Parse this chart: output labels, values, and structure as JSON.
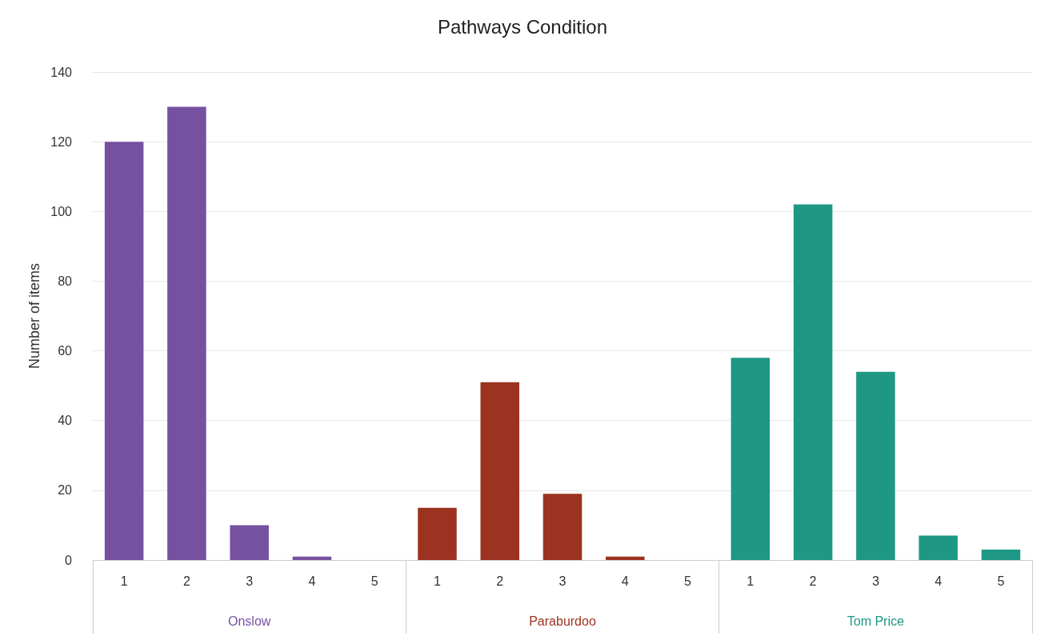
{
  "chart_data": {
    "type": "bar",
    "title": "Pathways Condition",
    "ylabel": "Number of items",
    "categories": [
      "1",
      "2",
      "3",
      "4",
      "5",
      "1",
      "2",
      "3",
      "4",
      "5",
      "1",
      "2",
      "3",
      "4",
      "5"
    ],
    "series": [
      {
        "name": "Onslow",
        "color": "#7651a0",
        "values": [
          120,
          130,
          10,
          1,
          0,
          null,
          null,
          null,
          null,
          null,
          null,
          null,
          null,
          null,
          null
        ]
      },
      {
        "name": "Paraburdoo",
        "color": "#9c3320",
        "values": [
          null,
          null,
          null,
          null,
          null,
          15,
          51,
          19,
          1,
          0,
          null,
          null,
          null,
          null,
          null
        ]
      },
      {
        "name": "Tom Price",
        "color": "#1e9884",
        "values": [
          null,
          null,
          null,
          null,
          null,
          null,
          null,
          null,
          null,
          null,
          58,
          102,
          54,
          7,
          3
        ]
      }
    ],
    "stacked": true,
    "ylim": [
      0,
      140
    ],
    "yticks": [
      0,
      20,
      40,
      60,
      80,
      100,
      120,
      140
    ],
    "grid": "y",
    "legend": false
  }
}
